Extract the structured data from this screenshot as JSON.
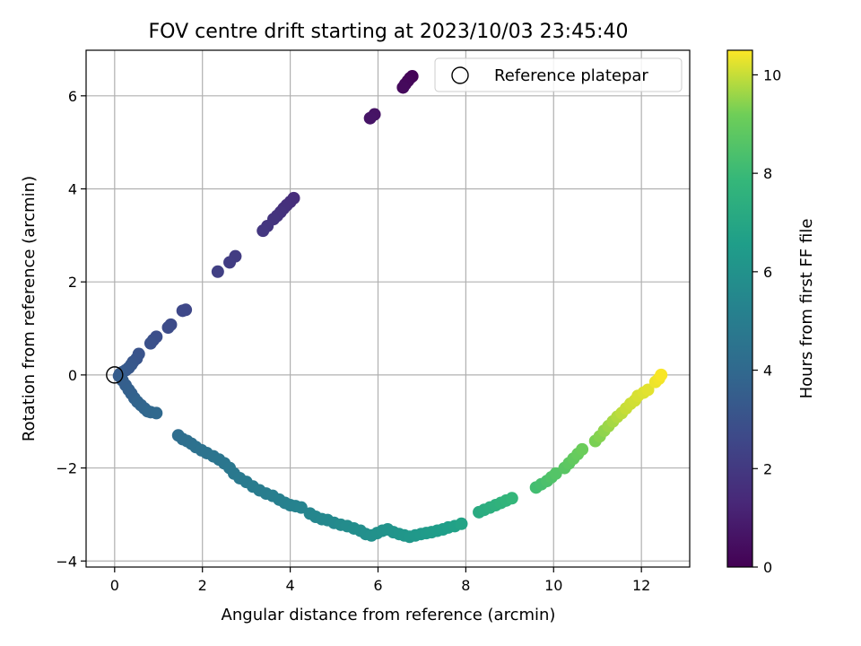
{
  "chart_data": {
    "type": "scatter",
    "title": "FOV centre drift starting at 2023/10/03 23:45:40",
    "xlabel": "Angular distance from reference (arcmin)",
    "ylabel": "Rotation from reference (arcmin)",
    "xlim": [
      -0.65,
      13.1
    ],
    "ylim": [
      -4.13,
      6.98
    ],
    "xticks": [
      0,
      2,
      4,
      6,
      8,
      10,
      12
    ],
    "yticks": [
      -4,
      -2,
      0,
      2,
      4,
      6
    ],
    "grid": true,
    "legend": {
      "position": "top-right",
      "entries": [
        "Reference platepar"
      ]
    },
    "colorbar": {
      "label": "Hours from first FF file",
      "range": [
        0,
        10.5
      ],
      "ticks": [
        0,
        2,
        4,
        6,
        8,
        10
      ],
      "colormap": "viridis"
    },
    "reference_point": {
      "x": 0,
      "y": 0,
      "label": "Reference platepar"
    },
    "series": [
      {
        "x": [
          6.78,
          6.73,
          6.68,
          6.62,
          6.57,
          5.92,
          5.82,
          4.08,
          4.0,
          3.92,
          3.85,
          3.78,
          3.7,
          3.62,
          3.48,
          3.38,
          2.75,
          2.62,
          2.35,
          1.62,
          1.55,
          1.28,
          1.22,
          0.95,
          0.88,
          0.82,
          0.55,
          0.5,
          0.42,
          0.38,
          0.32,
          0.25,
          0.18,
          0.12,
          0.1,
          0.18,
          0.25,
          0.32,
          0.38,
          0.45,
          0.52,
          0.6,
          0.68,
          0.75,
          0.82,
          0.95,
          1.45,
          1.55,
          1.65,
          1.75,
          1.85,
          1.98,
          2.1,
          2.25,
          2.38,
          2.5,
          2.62,
          2.72,
          2.85,
          3.0,
          3.15,
          3.3,
          3.45,
          3.6,
          3.75,
          3.88,
          4.0,
          4.12,
          4.25,
          4.45,
          4.58,
          4.72,
          4.85,
          5.0,
          5.15,
          5.3,
          5.45,
          5.6,
          5.72,
          5.85,
          5.98,
          6.1,
          6.22,
          6.35,
          6.48,
          6.6,
          6.72,
          6.85,
          6.98,
          7.1,
          7.22,
          7.35,
          7.48,
          7.6,
          7.75,
          7.9,
          8.3,
          8.42,
          8.55,
          8.68,
          8.8,
          8.92,
          9.05,
          9.6,
          9.72,
          9.85,
          9.95,
          10.05,
          10.25,
          10.35,
          10.45,
          10.55,
          10.65,
          10.95,
          11.05,
          11.15,
          11.25,
          11.35,
          11.45,
          11.55,
          11.65,
          11.75,
          11.85,
          11.92,
          12.05,
          12.15,
          12.32,
          12.4,
          12.45
        ],
        "y": [
          6.42,
          6.38,
          6.32,
          6.25,
          6.18,
          5.6,
          5.52,
          3.8,
          3.72,
          3.65,
          3.58,
          3.5,
          3.42,
          3.35,
          3.2,
          3.1,
          2.55,
          2.42,
          2.22,
          1.4,
          1.38,
          1.08,
          1.02,
          0.82,
          0.75,
          0.68,
          0.45,
          0.35,
          0.28,
          0.22,
          0.15,
          0.1,
          0.06,
          0.02,
          -0.02,
          -0.12,
          -0.22,
          -0.32,
          -0.4,
          -0.5,
          -0.58,
          -0.65,
          -0.72,
          -0.78,
          -0.8,
          -0.82,
          -1.3,
          -1.38,
          -1.42,
          -1.48,
          -1.55,
          -1.62,
          -1.68,
          -1.75,
          -1.82,
          -1.9,
          -2.0,
          -2.12,
          -2.22,
          -2.3,
          -2.4,
          -2.48,
          -2.55,
          -2.6,
          -2.68,
          -2.75,
          -2.8,
          -2.82,
          -2.85,
          -2.98,
          -3.05,
          -3.1,
          -3.12,
          -3.18,
          -3.22,
          -3.25,
          -3.3,
          -3.35,
          -3.42,
          -3.45,
          -3.4,
          -3.35,
          -3.32,
          -3.38,
          -3.42,
          -3.45,
          -3.48,
          -3.45,
          -3.42,
          -3.4,
          -3.38,
          -3.35,
          -3.32,
          -3.28,
          -3.25,
          -3.2,
          -2.95,
          -2.9,
          -2.85,
          -2.8,
          -2.75,
          -2.7,
          -2.65,
          -2.42,
          -2.35,
          -2.28,
          -2.2,
          -2.12,
          -2.0,
          -1.9,
          -1.8,
          -1.7,
          -1.6,
          -1.42,
          -1.32,
          -1.2,
          -1.1,
          -1.0,
          -0.9,
          -0.82,
          -0.72,
          -0.62,
          -0.55,
          -0.45,
          -0.38,
          -0.32,
          -0.15,
          -0.08,
          0.0
        ],
        "c": [
          0.1,
          0.15,
          0.2,
          0.25,
          0.3,
          0.6,
          0.65,
          1.5,
          1.55,
          1.6,
          1.65,
          1.7,
          1.75,
          1.8,
          1.85,
          1.9,
          2.1,
          2.15,
          2.25,
          2.55,
          2.6,
          2.7,
          2.75,
          2.85,
          2.9,
          2.95,
          3.05,
          3.1,
          3.15,
          3.2,
          3.25,
          3.3,
          3.35,
          3.4,
          3.45,
          3.5,
          3.55,
          3.6,
          3.65,
          3.7,
          3.75,
          3.8,
          3.85,
          3.9,
          3.95,
          4.0,
          4.2,
          4.25,
          4.3,
          4.35,
          4.4,
          4.45,
          4.5,
          4.55,
          4.6,
          4.65,
          4.7,
          4.75,
          4.8,
          4.85,
          4.9,
          4.95,
          5.0,
          5.05,
          5.1,
          5.15,
          5.2,
          5.25,
          5.3,
          5.4,
          5.45,
          5.5,
          5.55,
          5.6,
          5.65,
          5.7,
          5.75,
          5.8,
          5.85,
          5.9,
          5.95,
          6.0,
          6.05,
          6.1,
          6.15,
          6.2,
          6.25,
          6.3,
          6.35,
          6.4,
          6.45,
          6.5,
          6.55,
          6.6,
          6.7,
          6.8,
          7.2,
          7.3,
          7.4,
          7.5,
          7.6,
          7.7,
          7.8,
          8.2,
          8.3,
          8.4,
          8.5,
          8.6,
          8.7,
          8.8,
          8.9,
          9.0,
          9.1,
          9.3,
          9.4,
          9.5,
          9.6,
          9.7,
          9.8,
          9.9,
          10.0,
          10.05,
          10.1,
          10.15,
          10.2,
          10.25,
          10.35,
          10.4,
          10.45
        ]
      }
    ]
  }
}
